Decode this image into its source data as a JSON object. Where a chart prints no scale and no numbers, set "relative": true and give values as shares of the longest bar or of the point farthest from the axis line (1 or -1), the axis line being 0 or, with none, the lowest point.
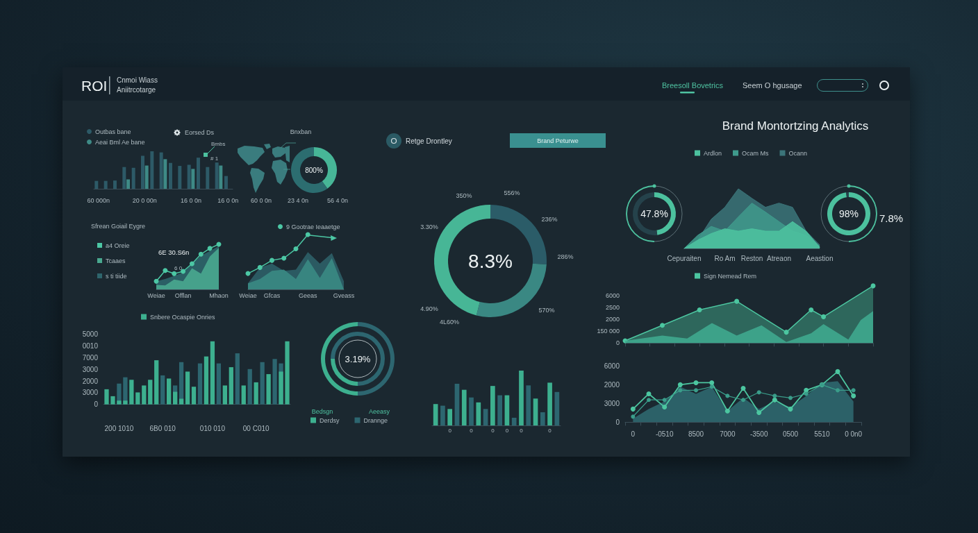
{
  "chart_data": [
    {
      "type": "other",
      "title": "ROI",
      "annotations": [
        "Cnmoi Wiass",
        "Aniitrcotarge",
        "Breesoll Bovetrics",
        "Seem O hgusage"
      ]
    },
    {
      "type": "bar",
      "relative": true,
      "categories": [
        "60 000n",
        null,
        null,
        null,
        null,
        "20 0 00n",
        null,
        null,
        null,
        null,
        "16 0 0n",
        null,
        null,
        null,
        "16 0 0n"
      ],
      "series": [
        {
          "name": "Outbas bane",
          "color": "#2d5a67",
          "values": [
            0.21,
            0.21,
            0.22,
            0.58,
            0.56,
            0.88,
            1,
            0.97,
            0.69,
            0.61,
            0.64,
            0.83,
            0.58,
            0.7,
            0.34
          ]
        },
        {
          "name": "Aeai Bml Ae bane",
          "color": "#3e8a86",
          "values": [
            null,
            null,
            null,
            0.25,
            null,
            0.62,
            null,
            0.79,
            null,
            null,
            0.53,
            null,
            null,
            0.62,
            null
          ]
        }
      ],
      "legend": "top left",
      "annotations": [
        "Eorsed Ds",
        "Bmbs",
        "# 1"
      ]
    },
    {
      "type": "donut",
      "title": "Bnxban",
      "categories": [
        null,
        null
      ],
      "values": [
        40,
        60
      ],
      "colors": [
        "#47b697",
        "#2c6d70"
      ],
      "annotations": [
        "800%",
        "60 0 0n",
        "23 4 0n",
        "56 4 0n"
      ]
    },
    {
      "type": "donut",
      "title": "Retge Drontley",
      "categories": [
        null,
        null,
        null
      ],
      "values": [
        26,
        28,
        46
      ],
      "colors": [
        "#2b5c68",
        "#3a8883",
        "#47b696"
      ],
      "annotations": [
        "Brand Peturwe",
        "8.3%",
        "350%",
        "556%",
        "236%",
        "286%",
        "570%",
        "4L60%",
        "4.90%",
        "3.30%"
      ]
    },
    {
      "type": "area",
      "title": "Brand Montortzing Analytics",
      "relative": true,
      "categories": [
        "Cepuraiten",
        null,
        null,
        "Ro Am",
        null,
        "Reston",
        null,
        "Atreaon",
        null,
        null,
        "Aeastion"
      ],
      "legend": "top",
      "series": [
        {
          "name": "Ardlon",
          "color": "#4cc19e",
          "values": [
            0,
            0.14,
            0.25,
            0.33,
            0.29,
            0.33,
            0.29,
            0.29,
            0.45,
            0.29,
            0.02
          ]
        },
        {
          "name": "Ocam Ms",
          "color": "#3f9a8c",
          "values": [
            0,
            0.22,
            0.37,
            0.29,
            0.53,
            0.76,
            0.61,
            0.45,
            0.29,
            0.22,
            0.04
          ]
        },
        {
          "name": "Ocann",
          "color": "#3b7479",
          "values": [
            0,
            0.14,
            0.49,
            0.69,
            1,
            0.84,
            0.69,
            0.76,
            0.69,
            0.29,
            0.06
          ]
        }
      ]
    },
    {
      "type": "donut",
      "categories": [
        null,
        null
      ],
      "values": [
        47.8,
        52.2
      ],
      "colors": [
        "#4cc19e",
        "#25424b"
      ],
      "value_labels": [
        "47.8%",
        null
      ]
    },
    {
      "type": "donut",
      "categories": [
        null,
        null
      ],
      "values": [
        98,
        2
      ],
      "colors": [
        "#4cc19e",
        "#25424b"
      ],
      "value_labels": [
        "98%",
        null
      ],
      "annotations": [
        "7.8%"
      ]
    },
    {
      "type": "area",
      "title": "Sfrean Goiail Eygre",
      "relative": true,
      "categories": [
        "Weiae",
        null,
        null,
        "Offlan",
        null,
        null,
        null,
        "Mhaon"
      ],
      "marker": "circle",
      "legend": "left",
      "series": [
        {
          "name": "a4 Oreie",
          "type": "line",
          "color": "#4cc7a4",
          "values": [
            0.18,
            0.42,
            0.35,
            0.4,
            0.57,
            0.78,
            0.91,
            1
          ]
        },
        {
          "name": "Tcaaes",
          "color": "#49a88f",
          "marker": "none",
          "values": [
            0.1,
            0.09,
            0.22,
            0.18,
            0.47,
            0.35,
            0.73,
            0.92
          ]
        },
        {
          "name": "s ti tiide",
          "color": "#2e656c",
          "marker": "none",
          "values": [
            0.18,
            0.23,
            0.3,
            0.38,
            0.57,
            0.75,
            0.85,
            0.96
          ]
        }
      ],
      "annotations": [
        "6E 30.S6n",
        "6 0"
      ]
    },
    {
      "type": "area",
      "relative": true,
      "categories": [
        "Weiae",
        null,
        "Gfcas",
        null,
        null,
        "Geeas",
        null,
        null,
        "Gveass"
      ],
      "marker": "circle",
      "legend": "top right",
      "series": [
        {
          "name": "9 Gootrae Ieaaetge",
          "type": "line",
          "color": "#4cc7a4",
          "values": [
            0.29,
            0.4,
            0.53,
            0.57,
            0.74,
            1,
            null,
            null,
            null
          ]
        },
        {
          "color": "#3a8a84",
          "marker": "none",
          "values": [
            0.11,
            0.19,
            0.34,
            0.36,
            0.19,
            0.55,
            0.21,
            0.57,
            0
          ]
        },
        {
          "color": "#2d5f68",
          "marker": "none",
          "values": [
            0.11,
            0.4,
            0.47,
            0.34,
            0.36,
            0.68,
            0.47,
            0.66,
            0.15
          ]
        }
      ]
    },
    {
      "type": "area",
      "relative": true,
      "categories": [
        null,
        null,
        null,
        null,
        null,
        null,
        null,
        null,
        null,
        null,
        null,
        null,
        null,
        null,
        null,
        null,
        null,
        null,
        null,
        null,
        null
      ],
      "legend": "top",
      "marker": "circle",
      "series": [
        {
          "name": "Sign Nemead Rem",
          "color": "#4cc6a0",
          "values": [
            0.04,
            null,
            null,
            0.31,
            null,
            null,
            0.58,
            null,
            null,
            0.73,
            null,
            null,
            null,
            0.19,
            null,
            0.58,
            0.46,
            null,
            null,
            null,
            1
          ]
        },
        {
          "color": "#3fa98e",
          "marker": "none",
          "values": [
            0.04,
            null,
            null,
            0.13,
            null,
            0.08,
            null,
            0.35,
            null,
            0.13,
            null,
            0.31,
            null,
            0.02,
            null,
            0.17,
            0.33,
            null,
            0.06,
            0.4,
            0.56
          ]
        }
      ],
      "annotations": [
        "6000",
        "2500",
        "2000",
        "150 000",
        "0"
      ]
    },
    {
      "type": "bar",
      "relative": true,
      "categories": [
        null,
        null,
        "200 1010",
        null,
        null,
        null,
        null,
        null,
        null,
        "6B0 010",
        null,
        null,
        null,
        null,
        null,
        null,
        null,
        "010 010",
        null,
        null,
        null,
        null,
        null,
        null,
        "00 C010",
        null,
        null,
        null,
        null,
        null
      ],
      "legend": "top",
      "series": [
        {
          "name": "Snbere Ocaspie Onries",
          "color": "#3db08f",
          "values": [
            0.24,
            0.13,
            0.06,
            0.06,
            0.39,
            0.19,
            0.3,
            0.39,
            0.7,
            null,
            0.41,
            0.2,
            0.09,
            0.52,
            0.28,
            null,
            0.76,
            1,
            null,
            0.3,
            0.59,
            null,
            0.3,
            null,
            0.35,
            null,
            0.48,
            null,
            0.52,
            1
          ]
        },
        {
          "color": "#2d6670",
          "values": [
            null,
            null,
            0.33,
            0.43,
            null,
            null,
            null,
            null,
            null,
            0.46,
            null,
            0.3,
            0.67,
            null,
            null,
            0.65,
            null,
            null,
            0.65,
            null,
            null,
            0.81,
            null,
            0.56,
            null,
            0.67,
            null,
            0.72,
            0.65,
            null
          ]
        }
      ],
      "annotations": [
        "5000",
        "0010",
        "7000",
        "3000",
        "2000",
        "3000",
        "0"
      ]
    },
    {
      "type": "donut",
      "categories": [
        "Derdsy",
        "Drannge"
      ],
      "values": [
        50,
        50
      ],
      "colors": [
        "#3db08f",
        "#2d6670"
      ],
      "legend": "bottom",
      "annotations": [
        "3.19%",
        "Bedsgn",
        "Aeeasy"
      ]
    },
    {
      "type": "donut",
      "categories": [
        null,
        null
      ],
      "values": [
        25,
        75
      ],
      "colors": [
        "#3db08f",
        "#2d6670"
      ]
    },
    {
      "type": "bar",
      "relative": true,
      "categories": [
        null,
        null,
        "0",
        null,
        null,
        "0",
        null,
        null,
        "0",
        null,
        "0",
        null,
        "0",
        null,
        null,
        null,
        "0",
        null
      ],
      "values": [
        0.39,
        0.36,
        0.3,
        0.76,
        0.65,
        0.51,
        0.42,
        0.3,
        0.72,
        0.55,
        0.55,
        0.14,
        1,
        0.73,
        0.49,
        0.24,
        0.78,
        0.61
      ],
      "colors": [
        "#3db08f",
        "#2d6670",
        "#3db08f",
        "#2d6670",
        "#3db08f",
        "#2d6670",
        "#3db08f",
        "#2d6670",
        "#3db08f",
        "#2d6670",
        "#3db08f",
        "#2d6670",
        "#3db08f",
        "#2d6670",
        "#3db08f",
        "#2d6670",
        "#3db08f",
        "#2d6670"
      ]
    },
    {
      "type": "area",
      "relative": true,
      "categories": [
        "0",
        null,
        "-0510",
        null,
        "8500",
        null,
        "7000",
        null,
        "-3500",
        null,
        "0500",
        null,
        "5510",
        null,
        "0 0n0"
      ],
      "marker": "circle",
      "series": [
        {
          "color": "#2f6b72",
          "marker": "none",
          "values": [
            0.07,
            0.26,
            0.41,
            0.7,
            0.56,
            0.7,
            0.22,
            0.48,
            0.26,
            0.41,
            0.3,
            0.52,
            0.78,
            0.81,
            0.41
          ]
        },
        {
          "type": "line",
          "color": "#4cc6a0",
          "values": [
            0.26,
            0.56,
            0.3,
            0.74,
            0.78,
            0.78,
            0.22,
            0.67,
            0.19,
            0.44,
            0.26,
            0.63,
            0.74,
            1,
            0.52
          ]
        },
        {
          "type": "line",
          "color": "#3a9d8a",
          "values": [
            0.11,
            0.44,
            0.44,
            0.63,
            0.63,
            0.7,
            0.52,
            0.44,
            0.59,
            0.52,
            0.48,
            0.56,
            0.74,
            0.63,
            0.63
          ]
        }
      ],
      "annotations": [
        "6000",
        "2000",
        "3000",
        "0"
      ]
    }
  ]
}
